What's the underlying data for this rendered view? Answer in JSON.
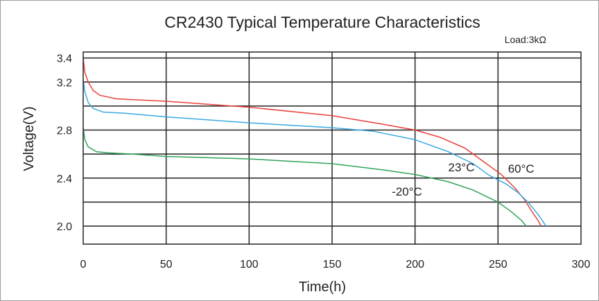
{
  "chart_data": {
    "type": "line",
    "title": "CR2430 Typical Temperature Characteristics",
    "subtitle": "Load:3kΩ",
    "xlabel": "Time(h)",
    "ylabel": "Voltage(V)",
    "xlim": [
      0,
      300
    ],
    "ylim": [
      1.85,
      3.45
    ],
    "grid": true,
    "x_ticks": [
      0,
      50,
      100,
      150,
      200,
      250,
      300
    ],
    "x_tick_labels": [
      "0",
      "50",
      "100",
      "150",
      "200",
      "250",
      "300"
    ],
    "y_ticks": [
      2.0,
      2.4,
      2.8,
      3.2,
      3.4
    ],
    "y_tick_labels": [
      "2.0",
      "2.4",
      "2.8",
      "3.2",
      "3.4"
    ],
    "y_gridlines": [
      2.0,
      2.2,
      2.4,
      2.6,
      2.8,
      3.0,
      3.2,
      3.4
    ],
    "series": [
      {
        "name": "60°C",
        "color": "#e8403a",
        "points": [
          [
            0,
            3.4
          ],
          [
            1,
            3.28
          ],
          [
            3,
            3.2
          ],
          [
            6,
            3.13
          ],
          [
            10,
            3.09
          ],
          [
            20,
            3.06
          ],
          [
            50,
            3.04
          ],
          [
            100,
            2.99
          ],
          [
            150,
            2.92
          ],
          [
            180,
            2.85
          ],
          [
            200,
            2.8
          ],
          [
            215,
            2.74
          ],
          [
            230,
            2.65
          ],
          [
            243,
            2.52
          ],
          [
            252,
            2.43
          ],
          [
            260,
            2.32
          ],
          [
            266,
            2.22
          ],
          [
            270,
            2.13
          ],
          [
            274,
            2.05
          ],
          [
            276,
            2.0
          ]
        ]
      },
      {
        "name": "23°C",
        "color": "#39a8e0",
        "points": [
          [
            0,
            3.22
          ],
          [
            1,
            3.12
          ],
          [
            3,
            3.03
          ],
          [
            6,
            2.98
          ],
          [
            12,
            2.95
          ],
          [
            25,
            2.94
          ],
          [
            50,
            2.91
          ],
          [
            100,
            2.86
          ],
          [
            150,
            2.82
          ],
          [
            175,
            2.79
          ],
          [
            200,
            2.72
          ],
          [
            220,
            2.62
          ],
          [
            235,
            2.52
          ],
          [
            245,
            2.42
          ],
          [
            255,
            2.35
          ],
          [
            262,
            2.28
          ],
          [
            268,
            2.2
          ],
          [
            274,
            2.1
          ],
          [
            278,
            2.02
          ],
          [
            279,
            2.0
          ]
        ]
      },
      {
        "name": "-20°C",
        "color": "#2fa35a",
        "points": [
          [
            0,
            2.82
          ],
          [
            1,
            2.72
          ],
          [
            3,
            2.66
          ],
          [
            8,
            2.62
          ],
          [
            15,
            2.61
          ],
          [
            30,
            2.6
          ],
          [
            50,
            2.58
          ],
          [
            100,
            2.56
          ],
          [
            150,
            2.52
          ],
          [
            180,
            2.47
          ],
          [
            200,
            2.43
          ],
          [
            220,
            2.37
          ],
          [
            235,
            2.3
          ],
          [
            250,
            2.2
          ],
          [
            258,
            2.12
          ],
          [
            264,
            2.05
          ],
          [
            267,
            2.0
          ]
        ]
      }
    ],
    "annotations": [
      {
        "text": "23°C",
        "x": 220,
        "y": 2.49
      },
      {
        "text": "60°C",
        "x": 256,
        "y": 2.48
      },
      {
        "text": "-20°C",
        "x": 186,
        "y": 2.29
      }
    ]
  }
}
